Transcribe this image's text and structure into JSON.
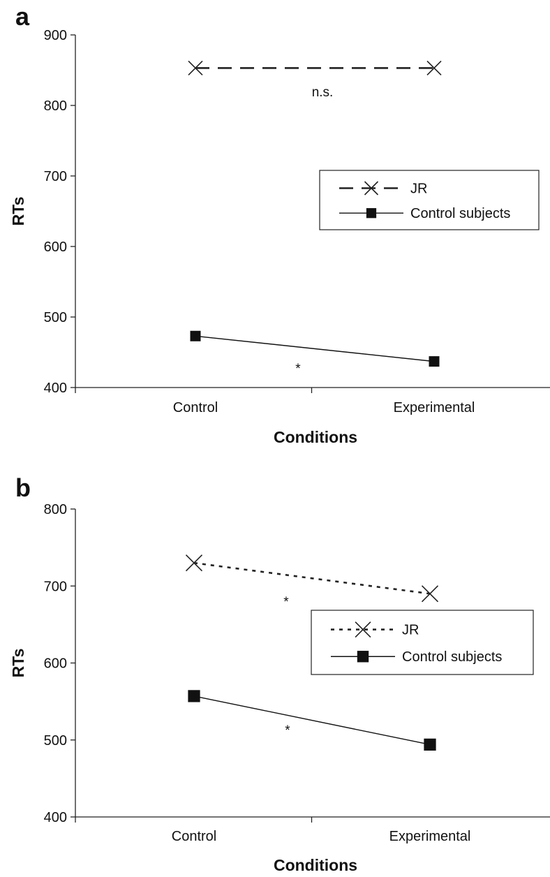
{
  "chart_data": [
    {
      "type": "line",
      "panel_label": "a",
      "categories": [
        "Control",
        "Experimental"
      ],
      "xlabel": "Conditions",
      "ylabel": "RTs",
      "ylim": [
        400,
        900
      ],
      "yticks": [
        "400",
        "500",
        "600",
        "700",
        "800",
        "900"
      ],
      "grid": false,
      "legend_position": "right",
      "series": [
        {
          "name": "JR",
          "values": [
            853,
            853
          ],
          "marker": "x",
          "line": "dashed",
          "color": "#222222"
        },
        {
          "name": "Control subjects",
          "values": [
            473,
            437
          ],
          "marker": "square",
          "line": "solid",
          "color": "#111111"
        }
      ],
      "annotations": [
        {
          "text": "n.s.",
          "series": "JR"
        },
        {
          "text": "*",
          "series": "Control subjects"
        }
      ]
    },
    {
      "type": "line",
      "panel_label": "b",
      "categories": [
        "Control",
        "Experimental"
      ],
      "xlabel": "Conditions",
      "ylabel": "RTs",
      "ylim": [
        400,
        800
      ],
      "yticks": [
        "400",
        "500",
        "600",
        "700",
        "800"
      ],
      "grid": false,
      "legend_position": "right",
      "series": [
        {
          "name": "JR",
          "values": [
            730,
            690
          ],
          "marker": "x",
          "line": "dotted",
          "color": "#222222"
        },
        {
          "name": "Control subjects",
          "values": [
            557,
            494
          ],
          "marker": "square",
          "line": "solid",
          "color": "#111111"
        }
      ],
      "annotations": [
        {
          "text": "*",
          "series": "JR"
        },
        {
          "text": "*",
          "series": "Control subjects"
        }
      ]
    }
  ]
}
